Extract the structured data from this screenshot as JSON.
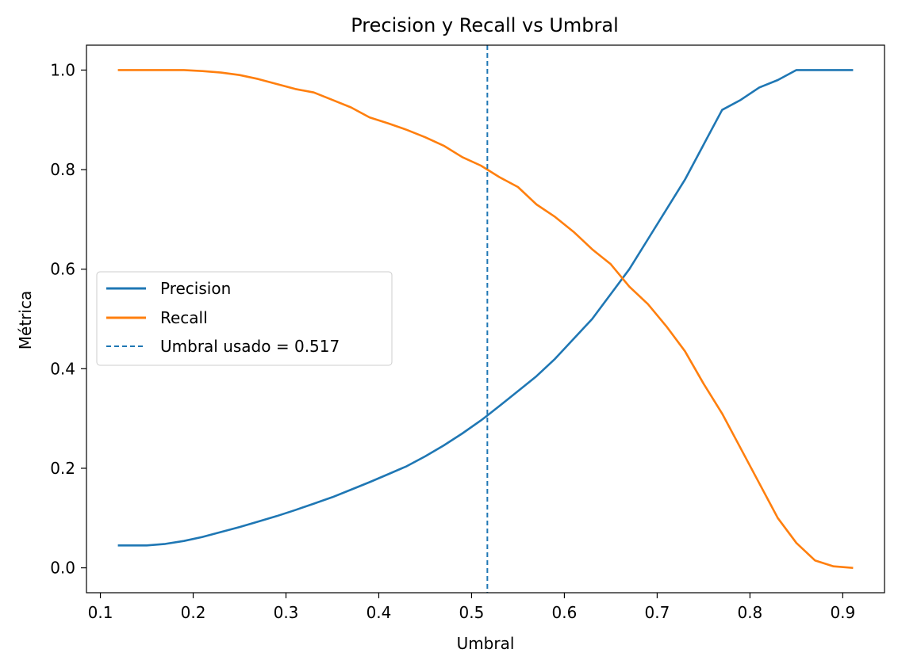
{
  "chart_data": {
    "type": "line",
    "title": "Precision y Recall vs Umbral",
    "xlabel": "Umbral",
    "ylabel": "Métrica",
    "xlim": [
      0.085,
      0.945
    ],
    "ylim": [
      -0.05,
      1.05
    ],
    "xticks": [
      "0.1",
      "0.2",
      "0.3",
      "0.4",
      "0.5",
      "0.6",
      "0.7",
      "0.8",
      "0.9"
    ],
    "yticks": [
      "0.0",
      "0.2",
      "0.4",
      "0.6",
      "0.8",
      "1.0"
    ],
    "grid": false,
    "legend_position": "center-left",
    "series": [
      {
        "name": "Precision",
        "color": "#1f77b4",
        "x": [
          0.12,
          0.15,
          0.17,
          0.19,
          0.21,
          0.23,
          0.25,
          0.27,
          0.29,
          0.31,
          0.33,
          0.35,
          0.37,
          0.39,
          0.41,
          0.43,
          0.45,
          0.47,
          0.49,
          0.51,
          0.517,
          0.53,
          0.55,
          0.57,
          0.59,
          0.61,
          0.63,
          0.65,
          0.67,
          0.69,
          0.71,
          0.73,
          0.75,
          0.77,
          0.79,
          0.81,
          0.83,
          0.85,
          0.87,
          0.89,
          0.91
        ],
        "values": [
          0.045,
          0.045,
          0.048,
          0.054,
          0.062,
          0.072,
          0.082,
          0.093,
          0.104,
          0.116,
          0.129,
          0.142,
          0.157,
          0.172,
          0.188,
          0.204,
          0.224,
          0.246,
          0.27,
          0.296,
          0.306,
          0.325,
          0.355,
          0.385,
          0.42,
          0.46,
          0.5,
          0.55,
          0.6,
          0.66,
          0.72,
          0.78,
          0.85,
          0.92,
          0.94,
          0.965,
          0.98,
          1.0,
          1.0,
          1.0,
          1.0
        ]
      },
      {
        "name": "Recall",
        "color": "#ff7f0e",
        "x": [
          0.12,
          0.15,
          0.17,
          0.19,
          0.21,
          0.23,
          0.25,
          0.27,
          0.29,
          0.31,
          0.33,
          0.35,
          0.37,
          0.39,
          0.41,
          0.43,
          0.45,
          0.47,
          0.49,
          0.51,
          0.517,
          0.53,
          0.55,
          0.57,
          0.59,
          0.61,
          0.63,
          0.65,
          0.67,
          0.69,
          0.71,
          0.73,
          0.75,
          0.77,
          0.79,
          0.81,
          0.83,
          0.85,
          0.87,
          0.89,
          0.91
        ],
        "values": [
          1.0,
          1.0,
          1.0,
          1.0,
          0.998,
          0.995,
          0.99,
          0.982,
          0.972,
          0.962,
          0.955,
          0.94,
          0.925,
          0.905,
          0.893,
          0.88,
          0.865,
          0.848,
          0.825,
          0.808,
          0.8,
          0.785,
          0.765,
          0.73,
          0.705,
          0.675,
          0.64,
          0.61,
          0.565,
          0.53,
          0.485,
          0.435,
          0.37,
          0.31,
          0.24,
          0.17,
          0.1,
          0.05,
          0.015,
          0.003,
          0.0
        ]
      }
    ],
    "reference_line": {
      "name": "Umbral usado = 0.517",
      "x": 0.517,
      "color": "#1f77b4",
      "style": "dashed"
    }
  }
}
